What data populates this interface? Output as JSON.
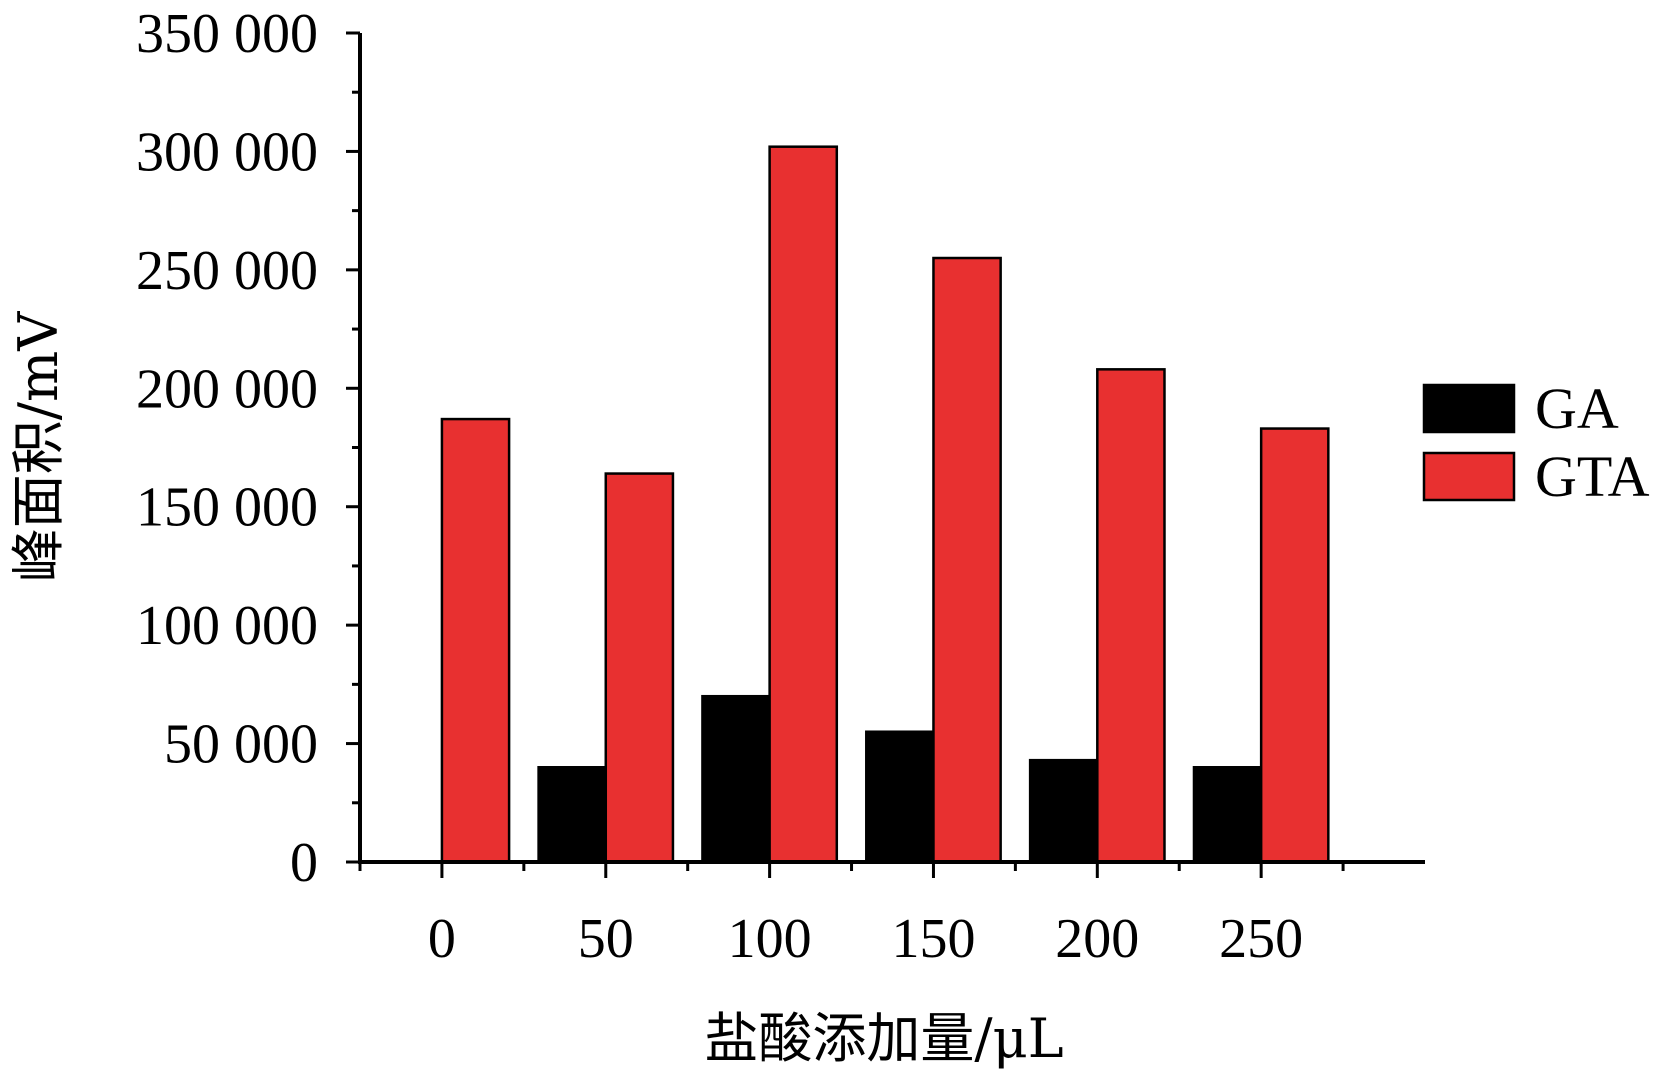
{
  "chart_data": {
    "type": "bar",
    "title": "",
    "xlabel": "盐酸添加量/μL",
    "ylabel": "峰面积/mV",
    "categories": [
      "0",
      "50",
      "100",
      "150",
      "200",
      "250"
    ],
    "series": [
      {
        "name": "GA",
        "color": "#000000",
        "values": [
          0,
          40000,
          70000,
          55000,
          43000,
          40000
        ]
      },
      {
        "name": "GTA",
        "color": "#e83030",
        "values": [
          187000,
          164000,
          302000,
          255000,
          208000,
          183000
        ]
      }
    ],
    "ylim": [
      0,
      350000
    ],
    "y_ticks": [
      0,
      50000,
      100000,
      150000,
      200000,
      250000,
      300000,
      350000
    ],
    "y_tick_labels": [
      "0",
      "50 000",
      "100 000",
      "150 000",
      "200 000",
      "250 000",
      "300 000",
      "350 000"
    ],
    "legend_position": "right",
    "grid": false
  }
}
